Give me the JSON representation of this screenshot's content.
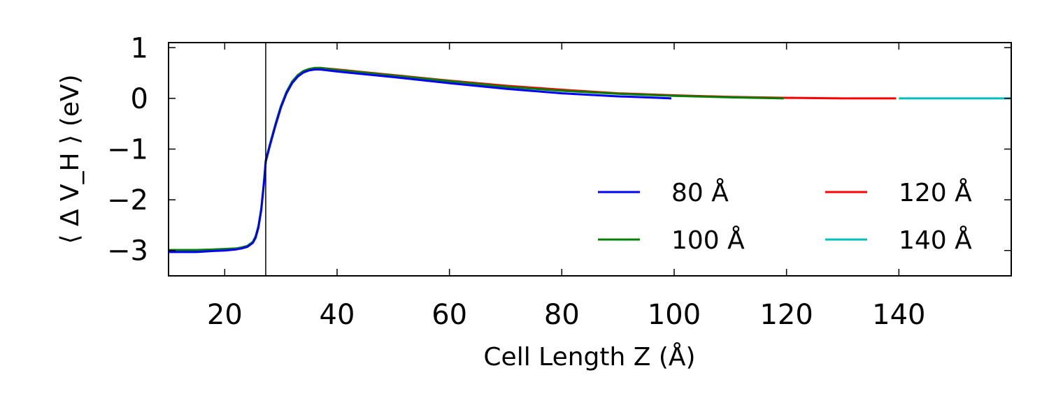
{
  "chart_data": {
    "type": "line",
    "title": "",
    "xlabel": "Cell Length Z (Å)",
    "ylabel": "⟨ Δ V_H ⟩ (eV)",
    "xlim": [
      10,
      160
    ],
    "ylim": [
      -3.5,
      1.1
    ],
    "xticks": [
      20,
      40,
      60,
      80,
      100,
      120,
      140
    ],
    "yticks": [
      1,
      0,
      -1,
      -2,
      -3
    ],
    "ytick_labels": [
      "1",
      "0",
      "−1",
      "−2",
      "−3"
    ],
    "vline_x": 27.3,
    "legend_position": "lower-right",
    "series": [
      {
        "name": "80 Å",
        "color": "#0000ff",
        "x": [
          10,
          15,
          18,
          20,
          22,
          23,
          24,
          25,
          25.5,
          26,
          26.5,
          27,
          27.3,
          28,
          29,
          30,
          31,
          32,
          33,
          34,
          35,
          36,
          37,
          40,
          50,
          60,
          70,
          80,
          90,
          95,
          99.5
        ],
        "y": [
          -3.03,
          -3.03,
          -3.01,
          -3.0,
          -2.98,
          -2.96,
          -2.93,
          -2.85,
          -2.75,
          -2.55,
          -2.2,
          -1.65,
          -1.25,
          -0.95,
          -0.55,
          -0.18,
          0.1,
          0.3,
          0.43,
          0.51,
          0.55,
          0.57,
          0.57,
          0.53,
          0.42,
          0.3,
          0.19,
          0.1,
          0.04,
          0.02,
          0.0
        ]
      },
      {
        "name": "100 Å",
        "color": "#008000",
        "x": [
          10,
          15,
          18,
          20,
          22,
          23,
          24,
          25,
          25.5,
          26,
          26.5,
          27,
          27.3,
          28,
          29,
          30,
          31,
          32,
          33,
          34,
          35,
          36,
          37,
          40,
          50,
          60,
          70,
          80,
          90,
          100,
          110,
          119.5
        ],
        "y": [
          -2.99,
          -2.99,
          -2.98,
          -2.97,
          -2.96,
          -2.94,
          -2.91,
          -2.83,
          -2.72,
          -2.52,
          -2.17,
          -1.62,
          -1.22,
          -0.92,
          -0.52,
          -0.15,
          0.13,
          0.33,
          0.46,
          0.54,
          0.58,
          0.6,
          0.6,
          0.56,
          0.45,
          0.34,
          0.23,
          0.15,
          0.09,
          0.05,
          0.02,
          0.0
        ]
      },
      {
        "name": "120 Å",
        "color": "#ff0000",
        "x": [
          36,
          37,
          40,
          50,
          60,
          70,
          80,
          90,
          100,
          110,
          120,
          130,
          139.5
        ],
        "y": [
          0.59,
          0.6,
          0.57,
          0.46,
          0.35,
          0.25,
          0.17,
          0.1,
          0.06,
          0.03,
          0.01,
          0.0,
          0.0
        ]
      },
      {
        "name": "140 Å",
        "color": "#00bfbf",
        "x": [
          140,
          150,
          160
        ],
        "y": [
          0.0,
          0.0,
          0.0
        ]
      }
    ]
  }
}
